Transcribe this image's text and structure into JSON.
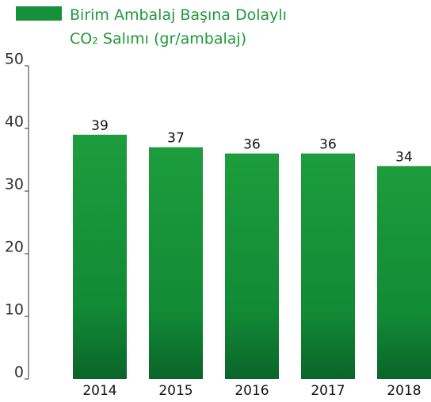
{
  "chart_data": {
    "type": "bar",
    "series": [
      {
        "name": "Birim Ambalaj Başına Dolaylı CO₂ Salımı (gr/ambalaj)",
        "color": "#14913a",
        "values": [
          39,
          37,
          36,
          36,
          34
        ]
      }
    ],
    "categories": [
      "2014",
      "2015",
      "2016",
      "2017",
      "2018"
    ],
    "ylim": [
      0,
      50
    ],
    "yticks": [
      0,
      10,
      20,
      30,
      40,
      50
    ],
    "legend": "top-left"
  }
}
